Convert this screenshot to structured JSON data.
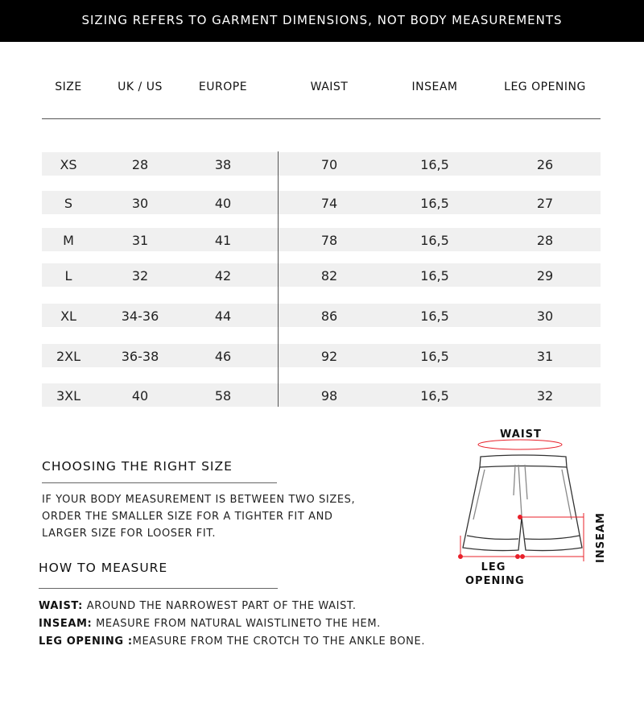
{
  "banner": "SIZING REFERS TO GARMENT DIMENSIONS, NOT BODY MEASUREMENTS",
  "table": {
    "headers": [
      "SIZE",
      "UK / US",
      "EUROPE",
      "WAIST",
      "INSEAM",
      "LEG OPENING"
    ],
    "rows": [
      [
        "XS",
        "28",
        "38",
        "70",
        "16,5",
        "26"
      ],
      [
        "S",
        "30",
        "40",
        "74",
        "16,5",
        "27"
      ],
      [
        "M",
        "31",
        "41",
        "78",
        "16,5",
        "28"
      ],
      [
        "L",
        "32",
        "42",
        "82",
        "16,5",
        "29"
      ],
      [
        "XL",
        "34-36",
        "44",
        "86",
        "16,5",
        "30"
      ],
      [
        "2XL",
        "36-38",
        "46",
        "92",
        "16,5",
        "31"
      ],
      [
        "3XL",
        "40",
        "58",
        "98",
        "16,5",
        "32"
      ]
    ],
    "row_color": "#f0f0f0"
  },
  "choosing": {
    "title": "CHOOSING THE RIGHT SIZE",
    "lines": [
      "IF YOUR BODY MEASUREMENT IS BETWEEN TWO SIZES,",
      "ORDER THE SMALLER SIZE FOR A TIGHTER FIT AND",
      "LARGER SIZE FOR LOOSER FIT."
    ]
  },
  "measure": {
    "title": "HOW TO MEASURE",
    "items": [
      {
        "term": "WAIST:",
        "desc": " AROUND THE NARROWEST PART OF THE WAIST."
      },
      {
        "term": "INSEAM:",
        "desc": " MEASURE FROM NATURAL WAISTLINETO THE HEM."
      },
      {
        "term": "LEG OPENING :",
        "desc": "MEASURE FROM THE CROTCH TO THE ANKLE BONE."
      }
    ]
  },
  "diagram": {
    "waist": "WAIST",
    "inseam": "INSEAM",
    "leg1": "LEG",
    "leg2": "OPENING",
    "accent": "#e8202a"
  }
}
